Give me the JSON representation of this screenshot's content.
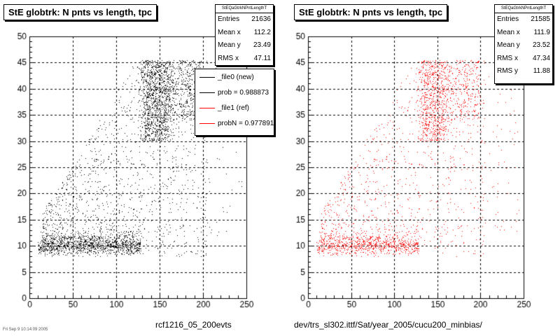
{
  "colors": {
    "left_series": "#000000",
    "right_series": "#ff0000",
    "legend_ref": "#ff0000"
  },
  "left": {
    "title": "StE globtrk: N pnts vs length, tpc",
    "stats": {
      "name": "StEQaGtrkNPntLengthT",
      "rows": [
        {
          "label": "Entries",
          "value": "21636"
        },
        {
          "label": "Mean x",
          "value": "112.2"
        },
        {
          "label": "Mean y",
          "value": "23.49"
        },
        {
          "label": "RMS x",
          "value": "47.11"
        }
      ]
    },
    "legend": [
      {
        "label": "_file0 (new)",
        "color": "#000000"
      },
      {
        "label": "prob = 0.988873",
        "color": "#000000"
      },
      {
        "label": "_file1 (ref)",
        "color": "#ff0000"
      },
      {
        "label": "probN = 0.977891",
        "color": "#ff0000"
      }
    ],
    "caption": "rcf1216_05_200evts"
  },
  "right": {
    "title": "StE globtrk: N pnts vs length, tpc",
    "stats": {
      "name": "StEQaGtrkNPntLengthT",
      "rows": [
        {
          "label": "Entries",
          "value": "21585"
        },
        {
          "label": "Mean x",
          "value": "111.9"
        },
        {
          "label": "Mean y",
          "value": "23.52"
        },
        {
          "label": "RMS x",
          "value": "47.34"
        },
        {
          "label": "RMS y",
          "value": "11.88"
        }
      ]
    },
    "caption": "dev/trs_sl302.ittf/Sat/year_2005/cucu200_minbias/"
  },
  "footer_small": "Fri Sep 9 10:14:09 2005",
  "chart_data": [
    {
      "type": "scatter",
      "title": "StE globtrk: N pnts vs length, tpc",
      "xlim": [
        0,
        250
      ],
      "ylim": [
        0,
        50
      ],
      "xticks": [
        0,
        50,
        100,
        150,
        200,
        250
      ],
      "yticks": [
        0,
        5,
        10,
        15,
        20,
        25,
        30,
        35,
        40,
        45,
        50
      ],
      "grid": true,
      "color": "#000000",
      "entries": 21636,
      "mean_x": 112.2,
      "mean_y": 23.49,
      "rms_x": 47.11,
      "density_regions": [
        {
          "x": [
            8,
            130
          ],
          "y": [
            8,
            12
          ],
          "weight": 3.5,
          "desc": "dense low band"
        },
        {
          "x": [
            130,
            160
          ],
          "y": [
            30,
            45
          ],
          "weight": 2.5,
          "desc": "dense upper cluster"
        },
        {
          "x": [
            20,
            200
          ],
          "y": [
            8,
            45
          ],
          "weight": 1.0,
          "desc": "diagonal spread"
        }
      ]
    },
    {
      "type": "scatter",
      "title": "StE globtrk: N pnts vs length, tpc",
      "xlim": [
        0,
        250
      ],
      "ylim": [
        0,
        50
      ],
      "xticks": [
        0,
        50,
        100,
        150,
        200,
        250
      ],
      "yticks": [
        0,
        5,
        10,
        15,
        20,
        25,
        30,
        35,
        40,
        45,
        50
      ],
      "grid": true,
      "color": "#ff0000",
      "entries": 21585,
      "mean_x": 111.9,
      "mean_y": 23.52,
      "rms_x": 47.34,
      "rms_y": 11.88,
      "density_regions": [
        {
          "x": [
            8,
            130
          ],
          "y": [
            8,
            12
          ],
          "weight": 3.5,
          "desc": "dense low band"
        },
        {
          "x": [
            130,
            160
          ],
          "y": [
            30,
            45
          ],
          "weight": 2.5,
          "desc": "dense upper cluster"
        },
        {
          "x": [
            20,
            200
          ],
          "y": [
            8,
            45
          ],
          "weight": 1.0,
          "desc": "diagonal spread"
        }
      ]
    }
  ]
}
